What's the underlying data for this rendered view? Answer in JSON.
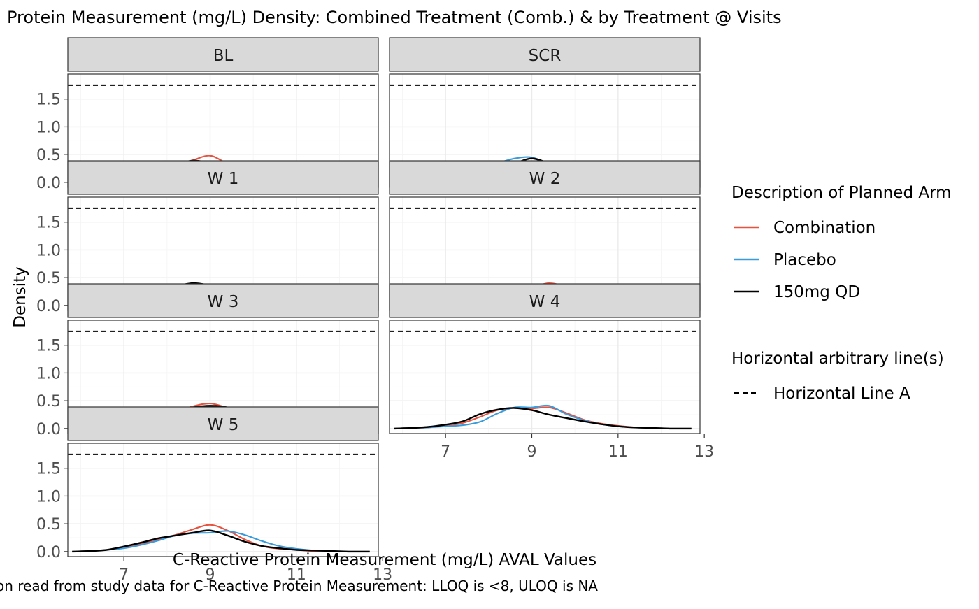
{
  "chart_data": {
    "type": "line",
    "title": "Protein Measurement (mg/L) Density: Combined Treatment (Comb.) & by Treatment @ Visits",
    "xlabel": "C-Reactive Protein Measurement (mg/L) AVAL Values",
    "ylabel": "Density",
    "caption": "on read from study data for C-Reactive Protein Measurement: LLOQ is <8, ULOQ is NA",
    "xlim": [
      5.7,
      12.9
    ],
    "ylim": [
      -0.09,
      1.95
    ],
    "x_ticks": [
      7,
      9,
      11,
      13
    ],
    "y_ticks": [
      0.0,
      0.5,
      1.0,
      1.5
    ],
    "y_tick_labels": [
      "0.0",
      "0.5",
      "1.0",
      "1.5"
    ],
    "grid": true,
    "facet_layout": "2 columns",
    "hline": {
      "y": 1.75,
      "name": "Horizontal Line A",
      "style": "dashed",
      "color": "#000000"
    },
    "legend": {
      "placement": "right",
      "arm_title": "Description of Planned Arm",
      "hline_title": "Horizontal arbitrary line(s)"
    },
    "series_meta": [
      {
        "name": "Combination",
        "color": "#E7533F"
      },
      {
        "name": "Placebo",
        "color": "#3A9BDB"
      },
      {
        "name": "150mg QD",
        "color": "#000000"
      }
    ],
    "x": [
      5.8,
      6.2,
      6.6,
      7.0,
      7.4,
      7.8,
      8.2,
      8.6,
      9.0,
      9.4,
      9.8,
      10.2,
      10.6,
      11.0,
      11.4,
      11.8,
      12.2,
      12.7
    ],
    "panels": [
      {
        "label": "BL",
        "series": [
          {
            "name": "Combination",
            "values": [
              0.0,
              0.01,
              0.03,
              0.07,
              0.14,
              0.24,
              0.32,
              0.4,
              0.48,
              0.34,
              0.25,
              0.18,
              0.1,
              0.05,
              0.02,
              0.01,
              0.0,
              0.0
            ]
          },
          {
            "name": "Placebo",
            "values": [
              0.0,
              0.01,
              0.04,
              0.09,
              0.15,
              0.22,
              0.3,
              0.36,
              0.31,
              0.34,
              0.33,
              0.22,
              0.11,
              0.05,
              0.02,
              0.01,
              0.0,
              0.0
            ]
          },
          {
            "name": "150mg QD",
            "values": [
              0.0,
              0.01,
              0.03,
              0.07,
              0.13,
              0.23,
              0.33,
              0.39,
              0.36,
              0.37,
              0.34,
              0.22,
              0.09,
              0.04,
              0.02,
              0.01,
              0.0,
              0.0
            ]
          }
        ]
      },
      {
        "label": "SCR",
        "series": [
          {
            "name": "Combination",
            "values": [
              0.0,
              0.01,
              0.03,
              0.06,
              0.12,
              0.2,
              0.28,
              0.34,
              0.38,
              0.34,
              0.29,
              0.24,
              0.14,
              0.07,
              0.03,
              0.01,
              0.0,
              0.0
            ]
          },
          {
            "name": "Placebo",
            "values": [
              0.0,
              0.01,
              0.03,
              0.07,
              0.13,
              0.23,
              0.34,
              0.43,
              0.45,
              0.33,
              0.22,
              0.14,
              0.07,
              0.03,
              0.01,
              0.0,
              0.0,
              0.0
            ]
          },
          {
            "name": "150mg QD",
            "values": [
              0.0,
              0.01,
              0.03,
              0.08,
              0.13,
              0.19,
              0.26,
              0.34,
              0.43,
              0.34,
              0.24,
              0.16,
              0.08,
              0.03,
              0.01,
              0.0,
              0.0,
              0.0
            ]
          }
        ]
      },
      {
        "label": "W 1",
        "series": [
          {
            "name": "Combination",
            "values": [
              0.0,
              0.02,
              0.04,
              0.09,
              0.2,
              0.28,
              0.31,
              0.33,
              0.33,
              0.3,
              0.25,
              0.18,
              0.11,
              0.05,
              0.02,
              0.01,
              0.0,
              0.0
            ]
          },
          {
            "name": "Placebo",
            "values": [
              0.0,
              0.01,
              0.03,
              0.07,
              0.15,
              0.26,
              0.32,
              0.35,
              0.34,
              0.3,
              0.25,
              0.19,
              0.12,
              0.06,
              0.02,
              0.01,
              0.0,
              0.0
            ]
          },
          {
            "name": "150mg QD",
            "values": [
              0.0,
              0.03,
              0.06,
              0.07,
              0.12,
              0.24,
              0.34,
              0.4,
              0.36,
              0.3,
              0.24,
              0.17,
              0.09,
              0.04,
              0.01,
              0.0,
              0.0,
              0.0
            ]
          }
        ]
      },
      {
        "label": "W 2",
        "series": [
          {
            "name": "Combination",
            "values": [
              0.0,
              0.01,
              0.03,
              0.05,
              0.12,
              0.21,
              0.29,
              0.33,
              0.33,
              0.4,
              0.33,
              0.19,
              0.1,
              0.05,
              0.02,
              0.01,
              0.0,
              0.0
            ]
          },
          {
            "name": "Placebo",
            "values": [
              0.0,
              0.01,
              0.03,
              0.08,
              0.14,
              0.21,
              0.27,
              0.35,
              0.35,
              0.32,
              0.25,
              0.19,
              0.12,
              0.07,
              0.03,
              0.01,
              0.0,
              0.0
            ]
          },
          {
            "name": "150mg QD",
            "values": [
              0.0,
              0.01,
              0.05,
              0.11,
              0.17,
              0.24,
              0.3,
              0.32,
              0.3,
              0.32,
              0.27,
              0.18,
              0.09,
              0.04,
              0.02,
              0.01,
              0.0,
              0.0
            ]
          }
        ]
      },
      {
        "label": "W 3",
        "series": [
          {
            "name": "Combination",
            "values": [
              0.0,
              0.01,
              0.02,
              0.05,
              0.1,
              0.19,
              0.3,
              0.4,
              0.45,
              0.37,
              0.25,
              0.15,
              0.08,
              0.04,
              0.02,
              0.01,
              0.0,
              0.0
            ]
          },
          {
            "name": "Placebo",
            "values": [
              0.0,
              0.01,
              0.03,
              0.07,
              0.13,
              0.21,
              0.28,
              0.33,
              0.35,
              0.33,
              0.26,
              0.18,
              0.11,
              0.06,
              0.03,
              0.01,
              0.0,
              0.0
            ]
          },
          {
            "name": "150mg QD",
            "values": [
              0.0,
              0.01,
              0.02,
              0.04,
              0.09,
              0.19,
              0.31,
              0.38,
              0.41,
              0.38,
              0.28,
              0.18,
              0.1,
              0.05,
              0.02,
              0.01,
              0.0,
              0.0
            ]
          }
        ]
      },
      {
        "label": "W 4",
        "series": [
          {
            "name": "Combination",
            "values": [
              0.0,
              0.01,
              0.02,
              0.05,
              0.1,
              0.21,
              0.33,
              0.37,
              0.36,
              0.38,
              0.28,
              0.16,
              0.09,
              0.05,
              0.02,
              0.01,
              0.0,
              0.0
            ]
          },
          {
            "name": "Placebo",
            "values": [
              0.0,
              0.01,
              0.02,
              0.04,
              0.06,
              0.12,
              0.27,
              0.38,
              0.38,
              0.41,
              0.26,
              0.15,
              0.08,
              0.04,
              0.02,
              0.01,
              0.0,
              0.0
            ]
          },
          {
            "name": "150mg QD",
            "values": [
              0.0,
              0.01,
              0.03,
              0.07,
              0.13,
              0.26,
              0.34,
              0.37,
              0.33,
              0.25,
              0.19,
              0.13,
              0.08,
              0.04,
              0.02,
              0.01,
              0.0,
              0.0
            ]
          }
        ]
      },
      {
        "label": "W 5",
        "series": [
          {
            "name": "Combination",
            "values": [
              0.0,
              0.01,
              0.03,
              0.07,
              0.14,
              0.22,
              0.3,
              0.4,
              0.48,
              0.38,
              0.22,
              0.1,
              0.05,
              0.03,
              0.01,
              0.0,
              0.0,
              0.0
            ]
          },
          {
            "name": "Placebo",
            "values": [
              0.0,
              0.01,
              0.03,
              0.06,
              0.12,
              0.2,
              0.29,
              0.33,
              0.34,
              0.37,
              0.3,
              0.19,
              0.1,
              0.05,
              0.02,
              0.01,
              0.0,
              0.0
            ]
          },
          {
            "name": "150mg QD",
            "values": [
              0.0,
              0.01,
              0.03,
              0.09,
              0.16,
              0.24,
              0.29,
              0.34,
              0.38,
              0.29,
              0.18,
              0.1,
              0.06,
              0.03,
              0.02,
              0.01,
              0.0,
              0.0
            ]
          }
        ]
      }
    ]
  }
}
